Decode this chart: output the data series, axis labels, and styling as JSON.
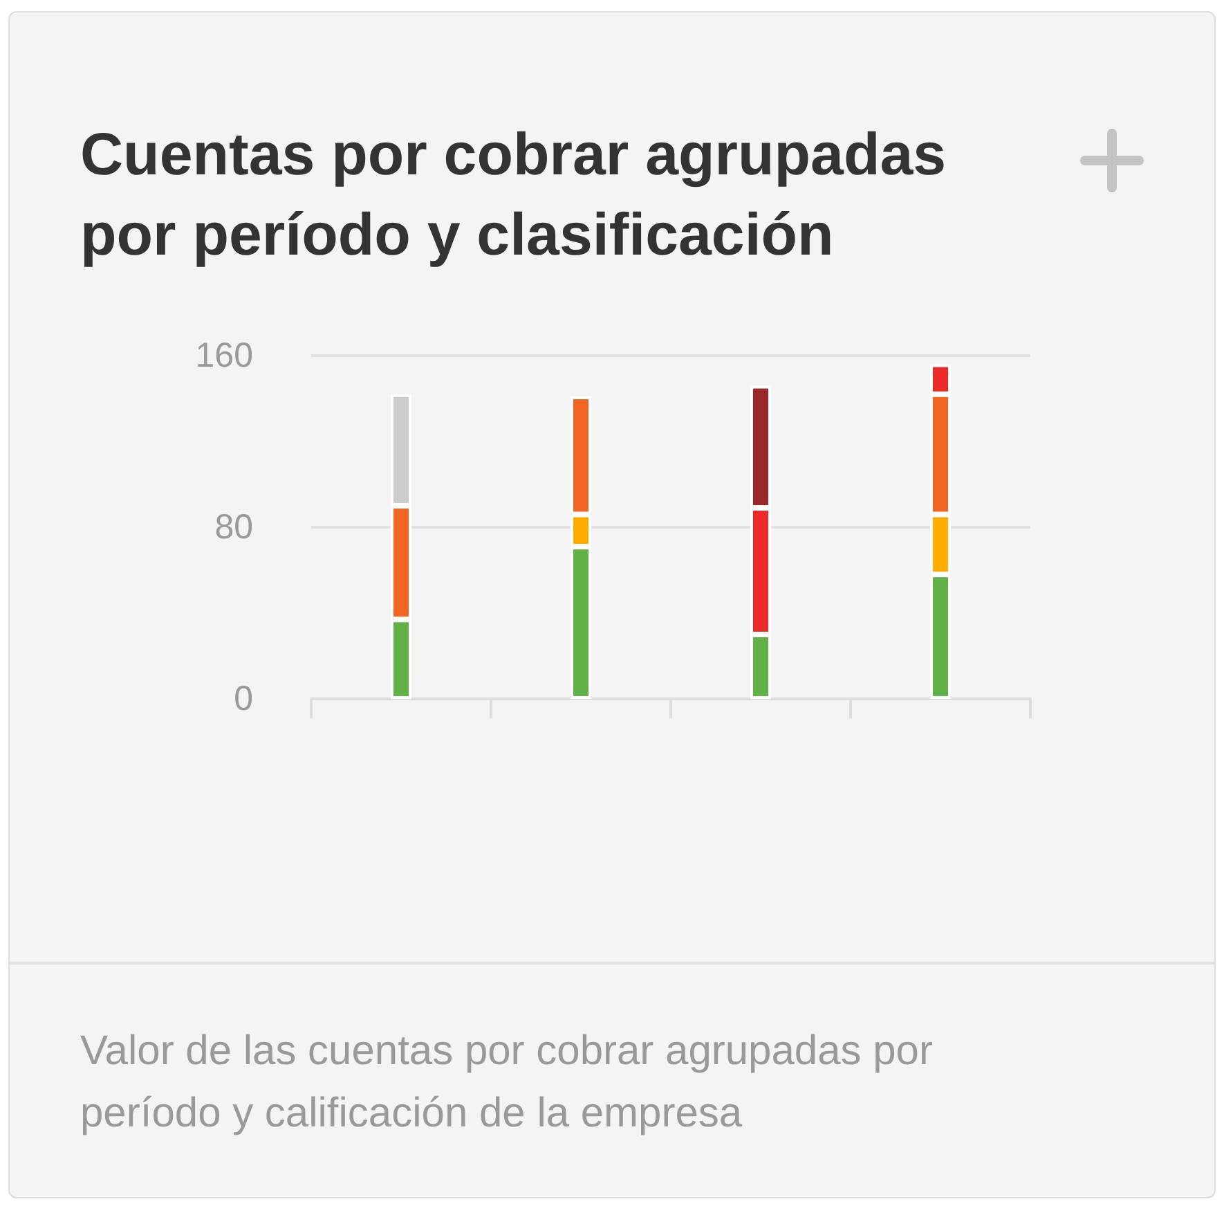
{
  "chart_data": {
    "type": "bar",
    "title": "Cuentas por cobrar agrupadas por período y clasificación",
    "annotations": [
      "Valor de las cuentas por cobrar agrupadas por período y calificación de la empresa"
    ],
    "categories": [
      null,
      null,
      null,
      null
    ],
    "series": [
      {
        "color": "#62b146",
        "values": [
          37,
          71,
          30,
          58
        ]
      },
      {
        "color": "#ffab00",
        "values": [
          null,
          15,
          null,
          28
        ]
      },
      {
        "color": "#f26522",
        "values": [
          53,
          55,
          null,
          56
        ]
      },
      {
        "color": "#ec2a2a",
        "values": [
          null,
          null,
          59,
          14
        ]
      },
      {
        "color": "#9b2828",
        "values": [
          null,
          null,
          57,
          null
        ]
      },
      {
        "color": "#cccccc",
        "values": [
          52,
          null,
          null,
          null
        ]
      }
    ],
    "stacked": true,
    "ylim": [
      0,
      160
    ],
    "yticks": [
      0,
      80,
      160
    ],
    "grid": "y",
    "tick_labels": "y"
  }
}
